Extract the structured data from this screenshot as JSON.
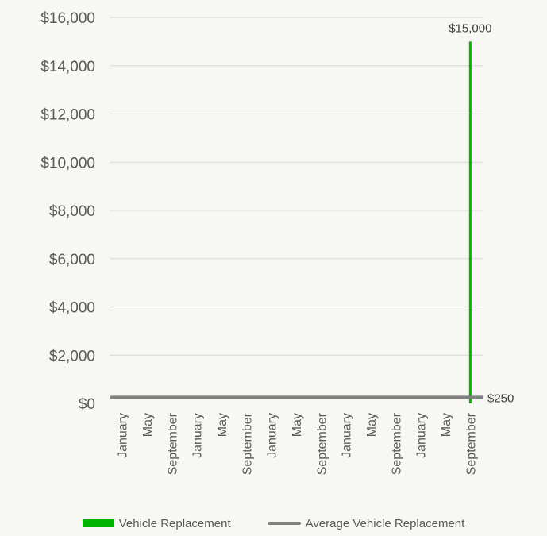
{
  "chart_data": {
    "type": "bar",
    "categories": [
      "January",
      "May",
      "September",
      "January",
      "May",
      "September",
      "January",
      "May",
      "September",
      "January",
      "May",
      "September",
      "January",
      "May",
      "September"
    ],
    "series": [
      {
        "name": "Vehicle Replacement",
        "kind": "bar",
        "color": "#00b400",
        "values": [
          0,
          0,
          0,
          0,
          0,
          0,
          0,
          0,
          0,
          0,
          0,
          0,
          0,
          0,
          15000
        ],
        "label_text": "$15,000"
      },
      {
        "name": "Average Vehicle Replacement",
        "kind": "line",
        "color": "#808080",
        "values": [
          250,
          250,
          250,
          250,
          250,
          250,
          250,
          250,
          250,
          250,
          250,
          250,
          250,
          250,
          250
        ],
        "label_text": "$250"
      }
    ],
    "y_ticks": [
      "$0",
      "$2,000",
      "$4,000",
      "$6,000",
      "$8,000",
      "$10,000",
      "$12,000",
      "$14,000",
      "$16,000"
    ],
    "ylim": [
      0,
      16000
    ],
    "grid": true,
    "legend_position": "bottom"
  }
}
